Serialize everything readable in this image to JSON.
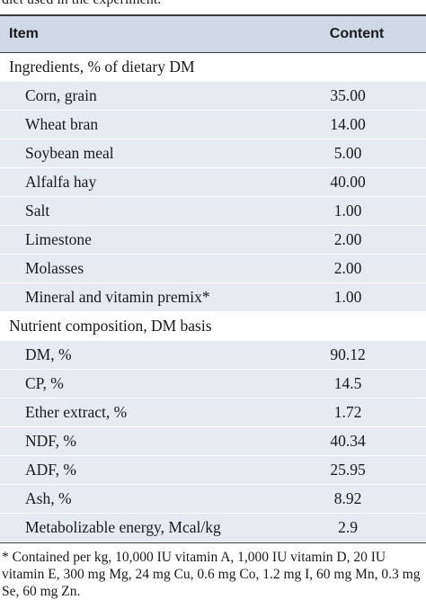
{
  "caption": "diet used in the experiment.",
  "header": {
    "item": "Item",
    "content": "Content"
  },
  "sections": [
    {
      "title": "Ingredients, % of dietary DM",
      "rows": [
        {
          "item": "Corn, grain",
          "content": "35.00"
        },
        {
          "item": "Wheat bran",
          "content": "14.00"
        },
        {
          "item": "Soybean meal",
          "content": "5.00"
        },
        {
          "item": "Alfalfa hay",
          "content": "40.00"
        },
        {
          "item": "Salt",
          "content": "1.00"
        },
        {
          "item": "Limestone",
          "content": "2.00"
        },
        {
          "item": "Molasses",
          "content": "2.00"
        },
        {
          "item": "Mineral and vitamin premix*",
          "content": "1.00"
        }
      ]
    },
    {
      "title": "Nutrient composition, DM basis",
      "rows": [
        {
          "item": "DM, %",
          "content": "90.12"
        },
        {
          "item": "CP, %",
          "content": "14.5"
        },
        {
          "item": "Ether extract, %",
          "content": "1.72"
        },
        {
          "item": "NDF, %",
          "content": "40.34"
        },
        {
          "item": "ADF, %",
          "content": "25.95"
        },
        {
          "item": "Ash, %",
          "content": "8.92"
        },
        {
          "item": "Metabolizable energy, Mcal/kg",
          "content": "2.9"
        }
      ]
    }
  ],
  "footnote": "* Contained per kg, 10,000 IU vitamin A, 1,000 IU vitamin D, 20 IU vitamin E, 300 mg Mg, 24 mg Cu, 0.6 mg Co, 1.2 mg I, 60 mg Mn, 0.3 mg Se, 60 mg Zn."
}
